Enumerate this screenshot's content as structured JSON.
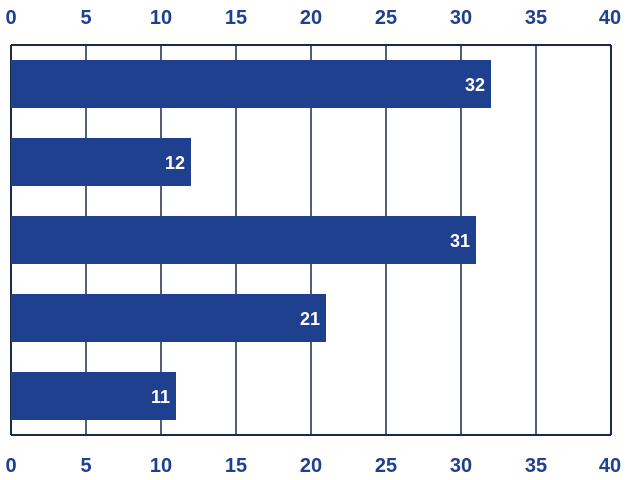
{
  "chart_data": {
    "type": "bar",
    "orientation": "horizontal",
    "values": [
      32,
      12,
      31,
      21,
      11
    ],
    "data_labels": [
      "32",
      "12",
      "31",
      "21",
      "11"
    ],
    "xlim": [
      0,
      40
    ],
    "x_ticks": [
      "0",
      "5",
      "10",
      "15",
      "20",
      "25",
      "30",
      "35",
      "40"
    ],
    "tick_labels_top": true,
    "tick_labels_bottom": true,
    "grid": "vertical",
    "legend": "none",
    "colors": {
      "bar": "#1f3f8f",
      "tick_label": "#1f3f8f",
      "grid": "#1a2a4a",
      "data_label": "#ffffff"
    }
  }
}
